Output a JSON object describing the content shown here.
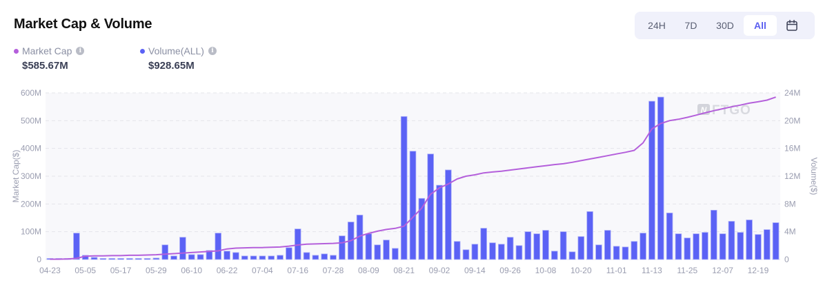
{
  "header": {
    "title": "Market Cap & Volume"
  },
  "legend": {
    "market_cap": {
      "label": "Market Cap",
      "value": "$585.67M",
      "color": "#b45fdb"
    },
    "volume": {
      "label": "Volume(ALL)",
      "value": "$928.65M",
      "color": "#5b62f5"
    }
  },
  "range_selector": {
    "options": [
      "24H",
      "7D",
      "30D",
      "All"
    ],
    "selected": "All",
    "calendar_icon": "calendar-icon"
  },
  "watermark": "NFTGO",
  "colors": {
    "bar": "#5b62f5",
    "line": "#b45fdb",
    "plot_bg": "#f8f8fb",
    "grid": "#e3e4ea",
    "axis_text": "#9a9db0"
  },
  "chart_data": {
    "type": "bar+line",
    "title": "Market Cap & Volume",
    "xlabel": "",
    "ylabel_left": "Market Cap($)",
    "ylabel_right": "Volume($)",
    "ylim_left": [
      0,
      600
    ],
    "ylim_right": [
      0,
      24
    ],
    "yticks_left": [
      "0",
      "100M",
      "200M",
      "300M",
      "400M",
      "500M",
      "600M"
    ],
    "yticks_right": [
      "0",
      "4M",
      "8M",
      "12M",
      "16M",
      "20M",
      "24M"
    ],
    "xticks": [
      "04-23",
      "05-05",
      "05-17",
      "05-29",
      "06-10",
      "06-22",
      "07-04",
      "07-16",
      "07-28",
      "08-09",
      "08-21",
      "09-02",
      "09-14",
      "09-26",
      "10-08",
      "10-20",
      "11-01",
      "11-13",
      "11-25",
      "12-07",
      "12-19"
    ],
    "grid": true,
    "legend_position": "top-left",
    "interval_days": 3,
    "series": [
      {
        "name": "Volume(ALL)",
        "type": "bar",
        "axis": "right",
        "unit": "M",
        "values": [
          0.02,
          0.02,
          0.02,
          3.8,
          0.6,
          0.3,
          0.1,
          0.1,
          0.1,
          0.15,
          0.1,
          0.1,
          0.2,
          2.1,
          0.5,
          3.2,
          0.7,
          0.7,
          1.3,
          3.8,
          1.2,
          1.0,
          0.5,
          0.5,
          0.5,
          0.5,
          0.6,
          1.7,
          4.4,
          1.0,
          0.6,
          0.8,
          0.6,
          3.4,
          5.4,
          6.4,
          3.7,
          2.1,
          2.8,
          1.6,
          20.6,
          15.6,
          8.8,
          15.2,
          10.7,
          12.9,
          2.6,
          1.4,
          2.2,
          4.5,
          2.4,
          2.2,
          3.2,
          2.0,
          4.0,
          3.7,
          4.2,
          1.2,
          4.0,
          1.1,
          3.3,
          6.9,
          2.1,
          4.2,
          1.9,
          1.8,
          2.6,
          3.8,
          22.8,
          23.4,
          6.7,
          3.7,
          3.1,
          3.7,
          3.9,
          7.1,
          3.7,
          5.5,
          3.9,
          5.7,
          3.6,
          4.3,
          5.3
        ]
      },
      {
        "name": "Market Cap",
        "type": "line",
        "axis": "left",
        "unit": "M",
        "values": [
          1,
          1,
          2,
          4,
          12,
          13,
          13,
          14,
          14,
          15,
          15,
          16,
          17,
          19,
          21,
          23,
          25,
          27,
          29,
          31,
          38,
          41,
          42,
          43,
          43,
          44,
          45,
          48,
          52,
          55,
          56,
          57,
          58,
          60,
          68,
          84,
          94,
          102,
          108,
          112,
          120,
          152,
          185,
          235,
          258,
          272,
          290,
          300,
          305,
          312,
          315,
          318,
          322,
          326,
          330,
          334,
          338,
          342,
          345,
          350,
          356,
          362,
          368,
          374,
          380,
          386,
          393,
          420,
          470,
          490,
          500,
          505,
          512,
          520,
          528,
          536,
          543,
          550,
          556,
          563,
          568,
          574,
          585
        ]
      }
    ]
  }
}
